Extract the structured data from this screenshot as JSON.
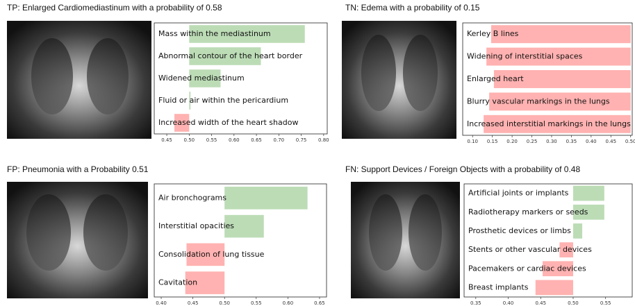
{
  "chart_data": [
    {
      "type": "bar",
      "orientation": "horizontal",
      "title": "TP: Enlarged Cardiomediastinum with a probability of 0.58",
      "categories": [
        "Mass within the mediastinum",
        "Abnormal contour of the heart border",
        "Widened mediastinum",
        "Fluid or air within the pericardium",
        "Increased width of the heart shadow"
      ],
      "values": [
        0.758,
        0.66,
        0.57,
        0.503,
        0.467
      ],
      "baseline": 0.5,
      "color_above": "#bcdcb6",
      "color_below": "#ffb2b1",
      "xlim": [
        0.422,
        0.808
      ],
      "xticks": [
        {
          "value": 0.45,
          "label": "0.45"
        },
        {
          "value": 0.5,
          "label": "0.50"
        },
        {
          "value": 0.55,
          "label": "0.55"
        },
        {
          "value": 0.6,
          "label": "0.60"
        },
        {
          "value": 0.65,
          "label": "0.65"
        },
        {
          "value": 0.7,
          "label": "0.70"
        },
        {
          "value": 0.75,
          "label": "0.75"
        },
        {
          "value": 0.8,
          "label": "0.80"
        }
      ]
    },
    {
      "type": "bar",
      "orientation": "horizontal",
      "title": "TN: Edema with a probability of 0.15",
      "categories": [
        "Kerley B lines",
        "Widening of interstitial spaces",
        "Enlarged heart",
        "Blurry vascular markings in the lungs",
        "Increased interstitial markings in the lungs"
      ],
      "values": [
        0.147,
        0.135,
        0.154,
        0.142,
        0.128
      ],
      "baseline": 0.5,
      "color_above": "#bcdcb6",
      "color_below": "#ffb2b1",
      "xlim": [
        0.075,
        0.504
      ],
      "xticks": [
        {
          "value": 0.1,
          "label": "0.10"
        },
        {
          "value": 0.15,
          "label": "0.15"
        },
        {
          "value": 0.2,
          "label": "0.20"
        },
        {
          "value": 0.25,
          "label": "0.25"
        },
        {
          "value": 0.3,
          "label": "0.30"
        },
        {
          "value": 0.35,
          "label": "0.35"
        },
        {
          "value": 0.4,
          "label": "0.40"
        },
        {
          "value": 0.45,
          "label": "0.45"
        },
        {
          "value": 0.5,
          "label": "0.50"
        }
      ]
    },
    {
      "type": "bar",
      "orientation": "horizontal",
      "title": "FP: Pneumonia with a Probability 0.51",
      "categories": [
        "Air bronchograms",
        "Interstitial opacities",
        "Consolidation of lung tissue",
        "Cavitation"
      ],
      "values": [
        0.631,
        0.562,
        0.44,
        0.438
      ],
      "baseline": 0.5,
      "color_above": "#bcdcb6",
      "color_below": "#ffb2b1",
      "xlim": [
        0.389,
        0.661
      ],
      "xticks": [
        {
          "value": 0.4,
          "label": "0.40"
        },
        {
          "value": 0.45,
          "label": "0.45"
        },
        {
          "value": 0.5,
          "label": "0.50"
        },
        {
          "value": 0.55,
          "label": "0.55"
        },
        {
          "value": 0.6,
          "label": "0.60"
        },
        {
          "value": 0.65,
          "label": "0.65"
        }
      ]
    },
    {
      "type": "bar",
      "orientation": "horizontal",
      "title": "FN: Support Devices / Foreign Objects with a probability of 0.48",
      "categories": [
        "Artificial joints or implants",
        "Radiotherapy markers or seeds",
        "Prosthetic devices or limbs",
        "Stents or other vascular devices",
        "Pacemakers or cardiac devices",
        "Breast implants"
      ],
      "values": [
        0.548,
        0.548,
        0.514,
        0.479,
        0.453,
        0.442
      ],
      "baseline": 0.5,
      "color_above": "#bcdcb6",
      "color_below": "#ffb2b1",
      "xlim": [
        0.332,
        0.591
      ],
      "xticks": [
        {
          "value": 0.35,
          "label": "0.35"
        },
        {
          "value": 0.4,
          "label": "0.40"
        },
        {
          "value": 0.45,
          "label": "0.45"
        },
        {
          "value": 0.5,
          "label": "0.50"
        },
        {
          "value": 0.55,
          "label": "0.55"
        }
      ]
    }
  ]
}
